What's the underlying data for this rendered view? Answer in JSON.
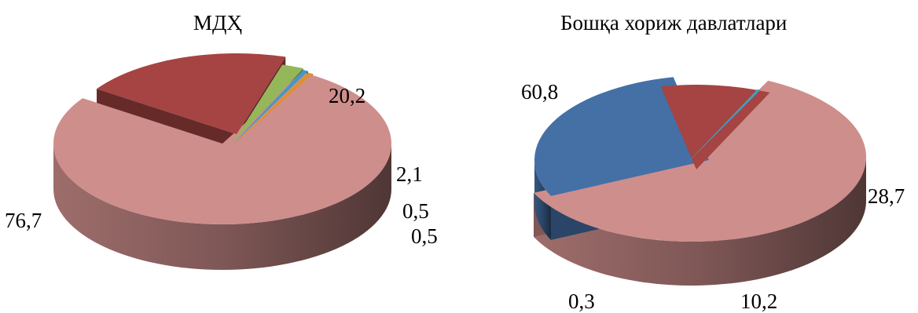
{
  "chart_data": [
    {
      "type": "pie",
      "title": "МДҲ",
      "style": "3d-exploded",
      "legend": "none",
      "slices": [
        {
          "value": 76.7,
          "label": "76,7",
          "color": "#CE8E8C"
        },
        {
          "value": 20.2,
          "label": "20,2",
          "color": "#A54442"
        },
        {
          "value": 2.1,
          "label": "2,1",
          "color": "#96B65A"
        },
        {
          "value": 0.5,
          "label": "0,5",
          "color": "#4198C6"
        },
        {
          "value": 0.5,
          "label": "0,5",
          "color": "#E0902E"
        }
      ]
    },
    {
      "type": "pie",
      "title": "Бошқа хориж давлатлари",
      "style": "3d-exploded",
      "legend": "none",
      "slices": [
        {
          "value": 60.8,
          "label": "60,8",
          "color": "#CE8E8C"
        },
        {
          "value": 28.7,
          "label": "28,7",
          "color": "#4470A6"
        },
        {
          "value": 10.2,
          "label": "10,2",
          "color": "#A54442"
        },
        {
          "value": 0.3,
          "label": "0,3",
          "color": "#3FA0C0"
        }
      ]
    }
  ]
}
